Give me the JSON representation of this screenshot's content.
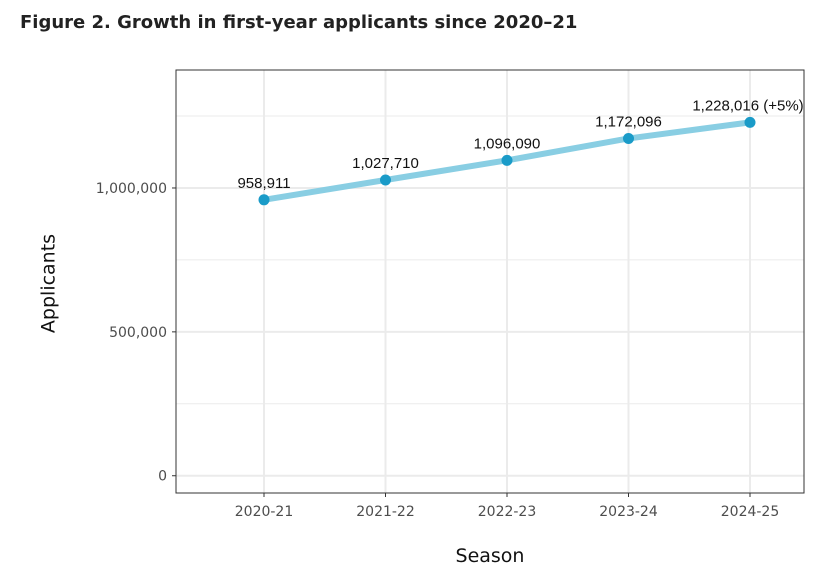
{
  "figure": {
    "title": "Figure 2. Growth in first-year applicants since 2020–21"
  },
  "chart_data": {
    "type": "line",
    "title": "Figure 2. Growth in first-year applicants since 2020–21",
    "xlabel": "Season",
    "ylabel": "Applicants",
    "categories": [
      "2020-21",
      "2021-22",
      "2022-23",
      "2023-24",
      "2024-25"
    ],
    "series": [
      {
        "values": [
          958911,
          1027710,
          1096090,
          1172096,
          1228016
        ]
      }
    ],
    "data_labels": [
      "958,911",
      "1,027,710",
      "1,096,090",
      "1,172,096",
      "1,228,016 (+5%)"
    ],
    "yticks": [
      0,
      500000,
      1000000
    ],
    "ytick_labels": [
      "0",
      "500,000",
      "1,000,000"
    ],
    "ylim": [
      -60000,
      1410000
    ],
    "grid": true,
    "legend": "none",
    "colors": {
      "line": "#89cee3",
      "point": "#1a9bc8",
      "grid": "#ebebeb",
      "panel_border": "#333333"
    }
  }
}
